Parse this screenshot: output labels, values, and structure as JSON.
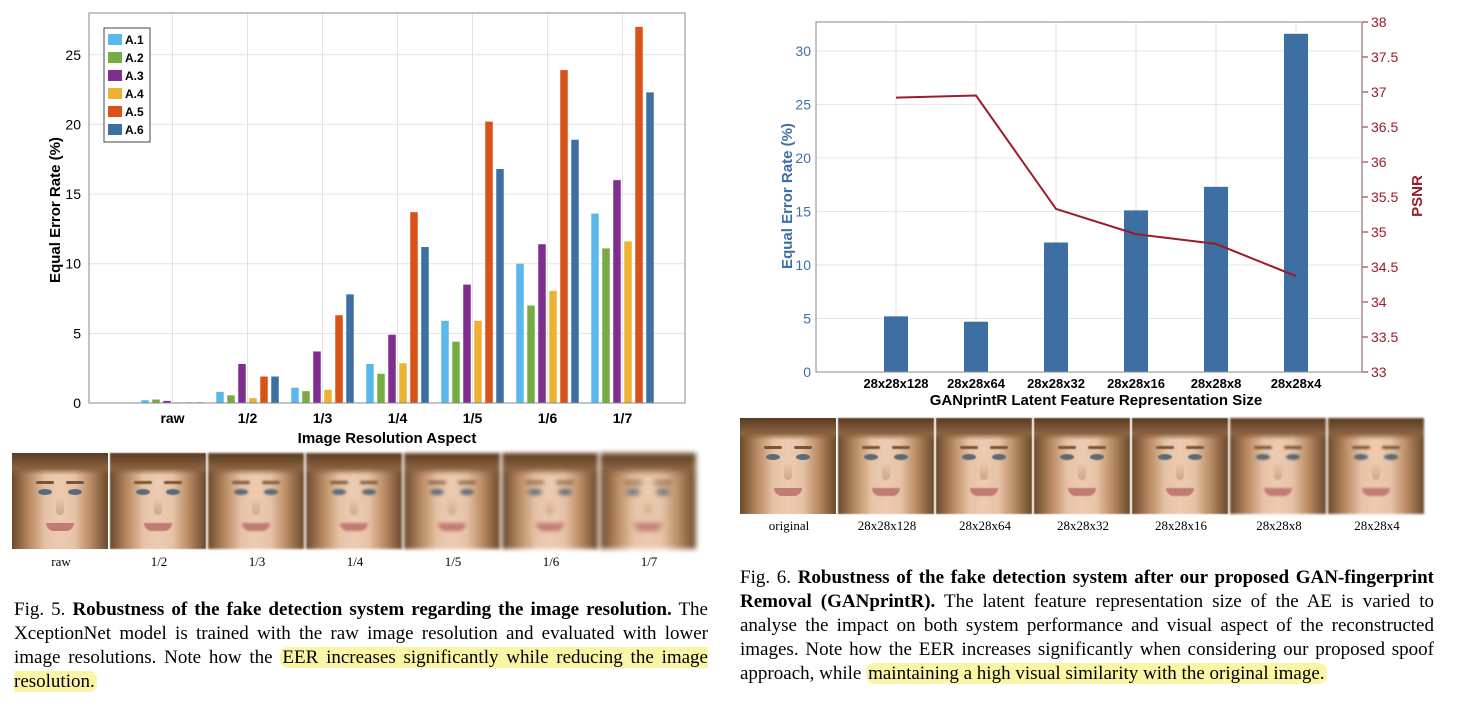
{
  "fig5": {
    "chart_data": {
      "type": "bar",
      "categories": [
        "raw",
        "1/2",
        "1/3",
        "1/4",
        "1/5",
        "1/6",
        "1/7"
      ],
      "series": [
        {
          "name": "A.1",
          "color": "#5bb8ea",
          "values": [
            0.2,
            0.8,
            1.1,
            2.8,
            5.9,
            10.0,
            13.6
          ]
        },
        {
          "name": "A.2",
          "color": "#77ac43",
          "values": [
            0.25,
            0.55,
            0.85,
            2.1,
            4.4,
            7.0,
            11.1
          ]
        },
        {
          "name": "A.3",
          "color": "#7e2f8e",
          "values": [
            0.15,
            2.8,
            3.7,
            4.9,
            8.5,
            11.4,
            16.0
          ]
        },
        {
          "name": "A.4",
          "color": "#edb231",
          "values": [
            0.05,
            0.35,
            0.95,
            2.85,
            5.9,
            8.05,
            11.6
          ]
        },
        {
          "name": "A.5",
          "color": "#d95319",
          "values": [
            0.05,
            1.9,
            6.3,
            13.7,
            20.2,
            23.9,
            27.0
          ]
        },
        {
          "name": "A.6",
          "color": "#3e6fa3",
          "values": [
            0.05,
            1.9,
            7.8,
            11.2,
            16.8,
            18.9,
            22.3
          ]
        }
      ],
      "yticks": [
        "0",
        "5",
        "10",
        "15",
        "20",
        "25"
      ],
      "ylim": [
        0,
        28
      ],
      "xlabel": "Image Resolution Aspect",
      "ylabel": "Equal Error Rate (%)",
      "legend": "top-left",
      "grid": true
    },
    "face_labels": [
      "raw",
      "1/2",
      "1/3",
      "1/4",
      "1/5",
      "1/6",
      "1/7"
    ],
    "caption": {
      "prefix": "Fig. 5.",
      "title": "Robustness of the fake detection system regarding the image resolution.",
      "body": "The XceptionNet model is trained with the raw image resolution and evaluated with lower image resolutions. Note how the",
      "highlight": "EER increases significantly while reducing the image resolution."
    }
  },
  "fig6": {
    "chart_data": {
      "type": "bar",
      "categories": [
        "28x28x128",
        "28x28x64",
        "28x28x32",
        "28x28x16",
        "28x28x8",
        "28x28x4"
      ],
      "bar_series": {
        "name": "Equal Error Rate (%)",
        "color": "#3e6fa3",
        "values": [
          5.2,
          4.7,
          12.1,
          15.1,
          17.3,
          31.6
        ]
      },
      "line_series": {
        "name": "PSNR",
        "color": "#9b1b2c",
        "values": [
          36.92,
          36.95,
          35.33,
          34.97,
          34.83,
          34.37
        ]
      },
      "yticks_left": [
        "0",
        "5",
        "10",
        "15",
        "20",
        "25",
        "30"
      ],
      "ylim_left": [
        0,
        32.7
      ],
      "yticks_right": [
        "33",
        "33.5",
        "34",
        "34.5",
        "35",
        "35.5",
        "36",
        "36.5",
        "37",
        "37.5",
        "38"
      ],
      "ylim_right": [
        33,
        38
      ],
      "xlabel": "GANprintR Latent Feature Representation Size",
      "ylabel_left": "Equal Error Rate (%)",
      "ylabel_right": "PSNR",
      "grid": true
    },
    "face_labels": [
      "original",
      "28x28x128",
      "28x28x64",
      "28x28x32",
      "28x28x16",
      "28x28x8",
      "28x28x4"
    ],
    "caption": {
      "prefix": "Fig. 6.",
      "title": "Robustness of the fake detection system after our proposed GAN-fingerprint Removal (GANprintR).",
      "body": "The latent feature representation size of the AE is varied to analyse the impact on both system performance and visual aspect of the reconstructed images. Note how the EER increases significantly when considering our proposed spoof approach, while",
      "highlight": "maintaining a high visual similarity with the original image."
    }
  }
}
